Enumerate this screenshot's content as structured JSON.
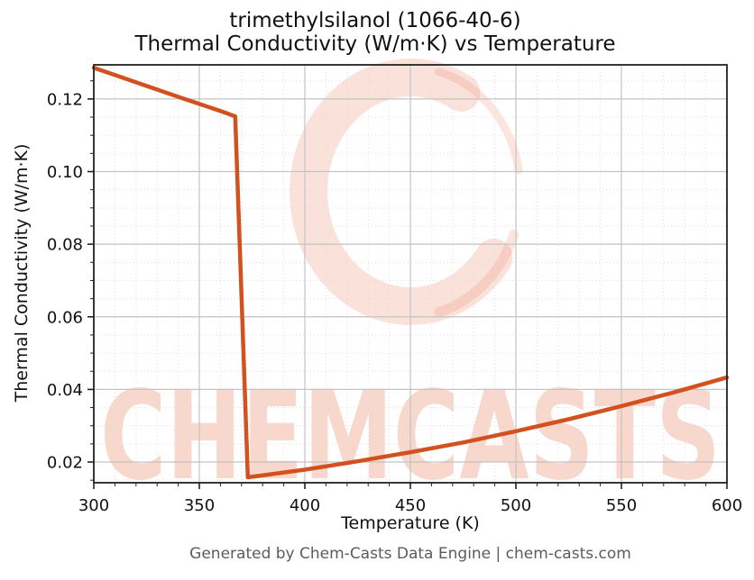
{
  "watermark": {
    "text": "CHEMCASTS",
    "color": "#e8795a",
    "logo_color": "#e97c5c"
  },
  "footer": {
    "text": "Generated by Chem-Casts Data Engine | chem-casts.com"
  },
  "chart_data": {
    "type": "line",
    "title_line1": "trimethylsilanol (1066-40-6)",
    "title_line2": "Thermal Conductivity (W/m·K) vs Temperature",
    "xlabel": "Temperature (K)",
    "ylabel": "Thermal Conductivity (W/m·K)",
    "xlim": [
      300,
      600
    ],
    "ylim": [
      0.0143,
      0.1294
    ],
    "x_ticks": [
      300,
      350,
      400,
      450,
      500,
      550,
      600
    ],
    "y_ticks": [
      0.02,
      0.04,
      0.06,
      0.08,
      0.1,
      0.12
    ],
    "x_minor_step": 10,
    "y_minor_step": 0.005,
    "grid": true,
    "legend": false,
    "line_color": "#d2511e",
    "line_width": 4.5,
    "series": [
      {
        "name": "thermal_conductivity_WmK",
        "points": [
          [
            300,
            0.1286
          ],
          [
            320,
            0.1246
          ],
          [
            340,
            0.1206
          ],
          [
            360,
            0.1167
          ],
          [
            367,
            0.1152
          ],
          [
            373,
            0.0158
          ],
          [
            400,
            0.0179
          ],
          [
            425,
            0.0202
          ],
          [
            450,
            0.0227
          ],
          [
            475,
            0.0254
          ],
          [
            500,
            0.0285
          ],
          [
            525,
            0.0318
          ],
          [
            550,
            0.0354
          ],
          [
            575,
            0.0392
          ],
          [
            600,
            0.0433
          ]
        ]
      }
    ]
  }
}
